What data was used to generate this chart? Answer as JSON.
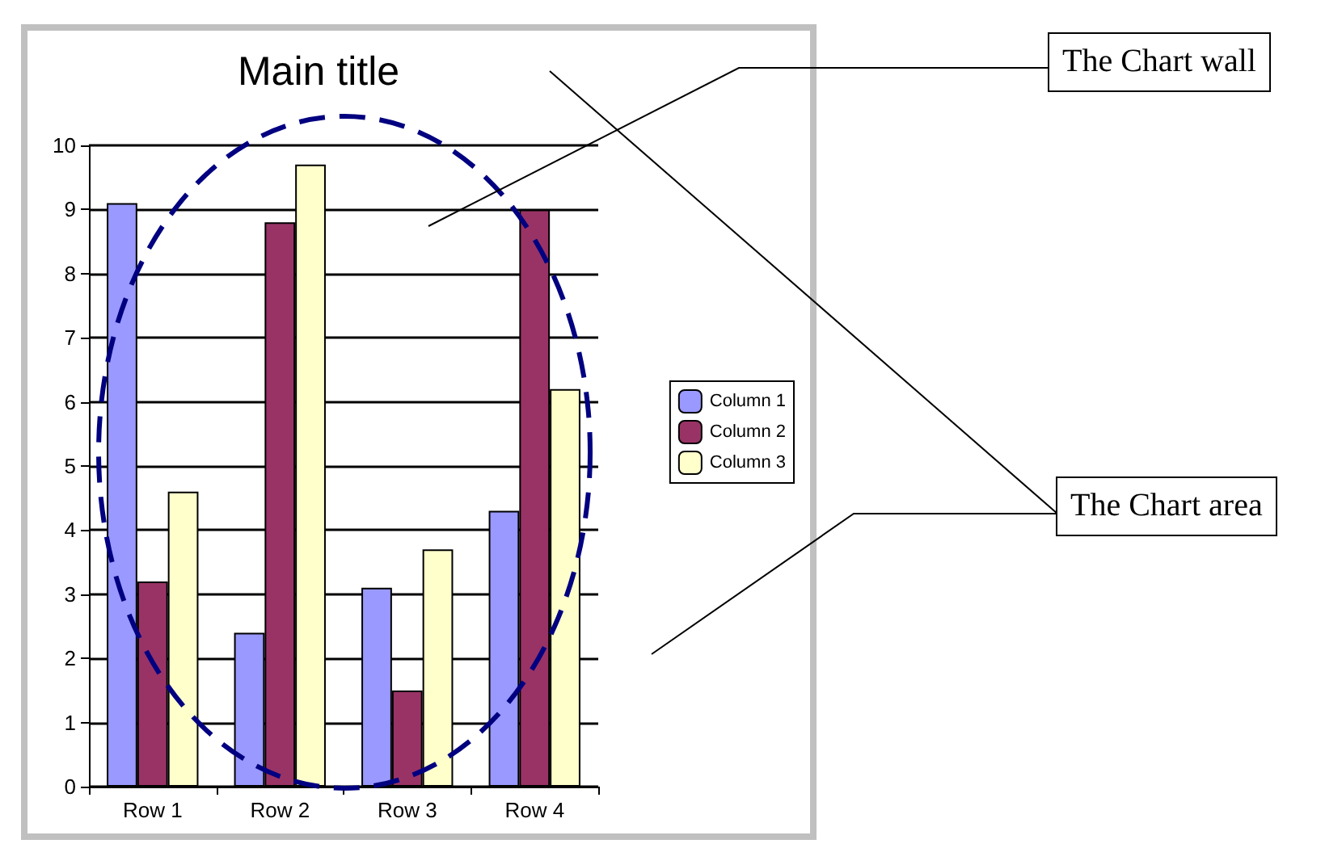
{
  "chart_data": {
    "type": "bar",
    "title": "Main title",
    "categories": [
      "Row 1",
      "Row 2",
      "Row 3",
      "Row 4"
    ],
    "series": [
      {
        "name": "Column 1",
        "color": "#9999ff",
        "values": [
          9.1,
          2.4,
          3.1,
          4.3
        ]
      },
      {
        "name": "Column 2",
        "color": "#993366",
        "values": [
          3.2,
          8.8,
          1.5,
          9.0
        ]
      },
      {
        "name": "Column 3",
        "color": "#ffffcc",
        "values": [
          4.6,
          9.7,
          3.7,
          6.2
        ]
      }
    ],
    "ylim": [
      0,
      10
    ],
    "yticks": [
      0,
      1,
      2,
      3,
      4,
      5,
      6,
      7,
      8,
      9,
      10
    ],
    "grid": "y",
    "legend": "right",
    "annotations": [
      "The Chart wall",
      "The Chart area"
    ]
  }
}
